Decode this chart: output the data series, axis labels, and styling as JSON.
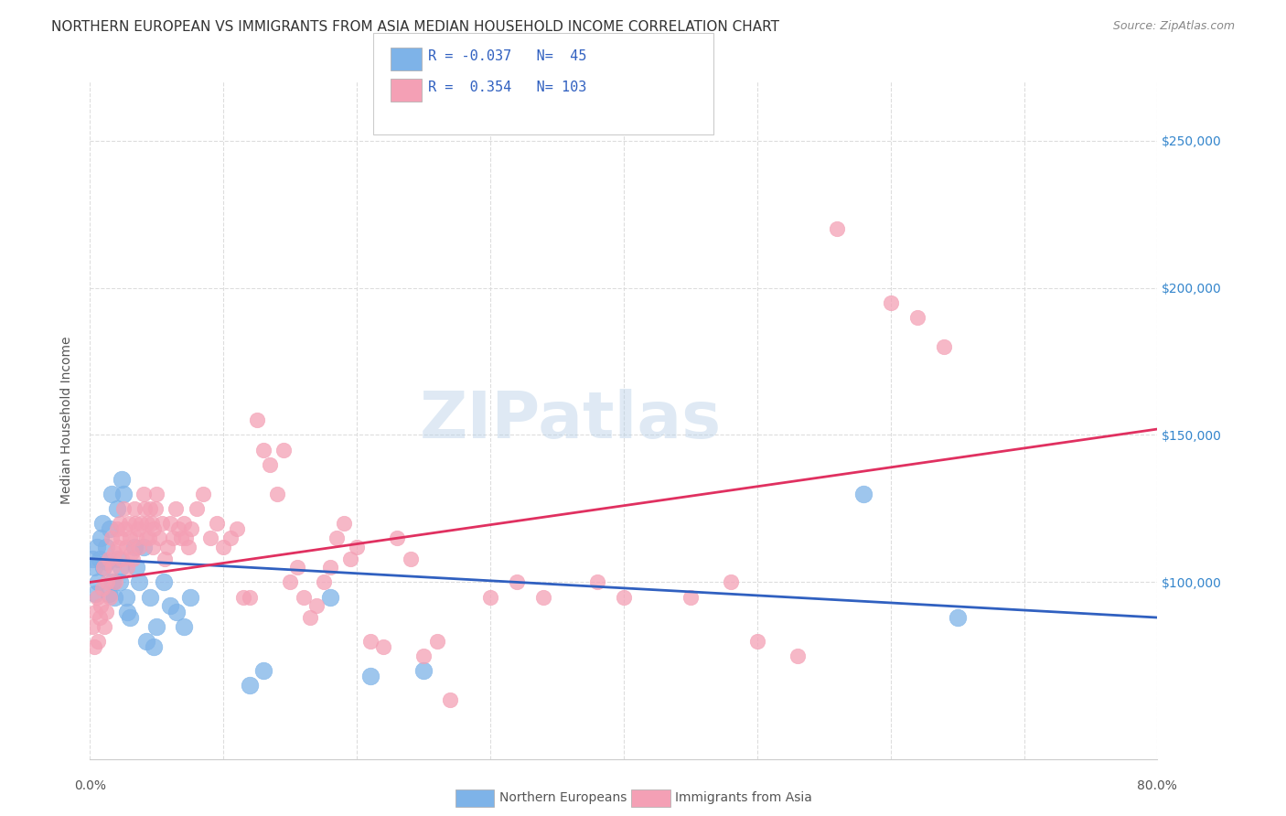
{
  "title": "NORTHERN EUROPEAN VS IMMIGRANTS FROM ASIA MEDIAN HOUSEHOLD INCOME CORRELATION CHART",
  "source": "Source: ZipAtlas.com",
  "ylabel": "Median Household Income",
  "xlim": [
    0,
    0.8
  ],
  "ylim": [
    40000,
    270000
  ],
  "ytick_labels": [
    "$250,000",
    "$200,000",
    "$150,000",
    "$100,000"
  ],
  "ytick_values": [
    250000,
    200000,
    150000,
    100000
  ],
  "legend_label1": "Northern Europeans",
  "legend_label2": "Immigrants from Asia",
  "R1": "-0.037",
  "N1": "45",
  "R2": "0.354",
  "N2": "103",
  "color_blue": "#7eb3e8",
  "color_pink": "#f4a0b5",
  "line_color_blue": "#3060c0",
  "line_color_pink": "#e03060",
  "watermark": "ZIPatlas",
  "blue_scatter": [
    [
      0.002,
      108000
    ],
    [
      0.003,
      105000
    ],
    [
      0.004,
      96000
    ],
    [
      0.005,
      112000
    ],
    [
      0.006,
      100000
    ],
    [
      0.007,
      108000
    ],
    [
      0.008,
      115000
    ],
    [
      0.009,
      120000
    ],
    [
      0.01,
      105000
    ],
    [
      0.012,
      112000
    ],
    [
      0.013,
      107000
    ],
    [
      0.014,
      96000
    ],
    [
      0.015,
      118000
    ],
    [
      0.016,
      130000
    ],
    [
      0.017,
      100000
    ],
    [
      0.018,
      95000
    ],
    [
      0.02,
      125000
    ],
    [
      0.021,
      108000
    ],
    [
      0.022,
      100000
    ],
    [
      0.023,
      105000
    ],
    [
      0.024,
      135000
    ],
    [
      0.025,
      130000
    ],
    [
      0.027,
      95000
    ],
    [
      0.028,
      90000
    ],
    [
      0.03,
      88000
    ],
    [
      0.033,
      112000
    ],
    [
      0.035,
      105000
    ],
    [
      0.037,
      100000
    ],
    [
      0.04,
      112000
    ],
    [
      0.042,
      80000
    ],
    [
      0.045,
      95000
    ],
    [
      0.048,
      78000
    ],
    [
      0.05,
      85000
    ],
    [
      0.055,
      100000
    ],
    [
      0.06,
      92000
    ],
    [
      0.065,
      90000
    ],
    [
      0.07,
      85000
    ],
    [
      0.075,
      95000
    ],
    [
      0.12,
      65000
    ],
    [
      0.13,
      70000
    ],
    [
      0.18,
      95000
    ],
    [
      0.21,
      68000
    ],
    [
      0.25,
      70000
    ],
    [
      0.58,
      130000
    ],
    [
      0.65,
      88000
    ]
  ],
  "pink_scatter": [
    [
      0.002,
      85000
    ],
    [
      0.003,
      78000
    ],
    [
      0.004,
      90000
    ],
    [
      0.005,
      95000
    ],
    [
      0.006,
      80000
    ],
    [
      0.007,
      88000
    ],
    [
      0.008,
      92000
    ],
    [
      0.009,
      98000
    ],
    [
      0.01,
      105000
    ],
    [
      0.011,
      85000
    ],
    [
      0.012,
      90000
    ],
    [
      0.013,
      100000
    ],
    [
      0.014,
      108000
    ],
    [
      0.015,
      95000
    ],
    [
      0.016,
      115000
    ],
    [
      0.017,
      105000
    ],
    [
      0.018,
      110000
    ],
    [
      0.019,
      100000
    ],
    [
      0.02,
      118000
    ],
    [
      0.021,
      112000
    ],
    [
      0.022,
      120000
    ],
    [
      0.023,
      115000
    ],
    [
      0.024,
      108000
    ],
    [
      0.025,
      125000
    ],
    [
      0.026,
      118000
    ],
    [
      0.027,
      112000
    ],
    [
      0.028,
      105000
    ],
    [
      0.029,
      120000
    ],
    [
      0.03,
      115000
    ],
    [
      0.031,
      110000
    ],
    [
      0.032,
      108000
    ],
    [
      0.033,
      125000
    ],
    [
      0.034,
      120000
    ],
    [
      0.035,
      115000
    ],
    [
      0.036,
      118000
    ],
    [
      0.037,
      112000
    ],
    [
      0.038,
      120000
    ],
    [
      0.04,
      130000
    ],
    [
      0.041,
      125000
    ],
    [
      0.042,
      115000
    ],
    [
      0.043,
      120000
    ],
    [
      0.044,
      115000
    ],
    [
      0.045,
      125000
    ],
    [
      0.046,
      120000
    ],
    [
      0.047,
      112000
    ],
    [
      0.048,
      118000
    ],
    [
      0.049,
      125000
    ],
    [
      0.05,
      130000
    ],
    [
      0.052,
      115000
    ],
    [
      0.054,
      120000
    ],
    [
      0.056,
      108000
    ],
    [
      0.058,
      112000
    ],
    [
      0.06,
      120000
    ],
    [
      0.062,
      115000
    ],
    [
      0.064,
      125000
    ],
    [
      0.066,
      118000
    ],
    [
      0.068,
      115000
    ],
    [
      0.07,
      120000
    ],
    [
      0.072,
      115000
    ],
    [
      0.074,
      112000
    ],
    [
      0.076,
      118000
    ],
    [
      0.08,
      125000
    ],
    [
      0.085,
      130000
    ],
    [
      0.09,
      115000
    ],
    [
      0.095,
      120000
    ],
    [
      0.1,
      112000
    ],
    [
      0.105,
      115000
    ],
    [
      0.11,
      118000
    ],
    [
      0.115,
      95000
    ],
    [
      0.12,
      95000
    ],
    [
      0.125,
      155000
    ],
    [
      0.13,
      145000
    ],
    [
      0.135,
      140000
    ],
    [
      0.14,
      130000
    ],
    [
      0.145,
      145000
    ],
    [
      0.15,
      100000
    ],
    [
      0.155,
      105000
    ],
    [
      0.16,
      95000
    ],
    [
      0.165,
      88000
    ],
    [
      0.17,
      92000
    ],
    [
      0.175,
      100000
    ],
    [
      0.18,
      105000
    ],
    [
      0.185,
      115000
    ],
    [
      0.19,
      120000
    ],
    [
      0.195,
      108000
    ],
    [
      0.2,
      112000
    ],
    [
      0.21,
      80000
    ],
    [
      0.22,
      78000
    ],
    [
      0.23,
      115000
    ],
    [
      0.24,
      108000
    ],
    [
      0.25,
      75000
    ],
    [
      0.26,
      80000
    ],
    [
      0.27,
      60000
    ],
    [
      0.3,
      95000
    ],
    [
      0.32,
      100000
    ],
    [
      0.34,
      95000
    ],
    [
      0.38,
      100000
    ],
    [
      0.4,
      95000
    ],
    [
      0.45,
      95000
    ],
    [
      0.48,
      100000
    ],
    [
      0.5,
      80000
    ],
    [
      0.53,
      75000
    ],
    [
      0.56,
      220000
    ],
    [
      0.6,
      195000
    ],
    [
      0.62,
      190000
    ],
    [
      0.64,
      180000
    ]
  ],
  "blue_line_x": [
    0.0,
    0.8
  ],
  "blue_line_y": [
    108000,
    88000
  ],
  "pink_line_x": [
    0.0,
    0.8
  ],
  "pink_line_y": [
    100000,
    152000
  ],
  "background_color": "#ffffff",
  "grid_color": "#dddddd",
  "title_fontsize": 11,
  "axis_label_fontsize": 10,
  "tick_fontsize": 10,
  "legend_fontsize": 11
}
